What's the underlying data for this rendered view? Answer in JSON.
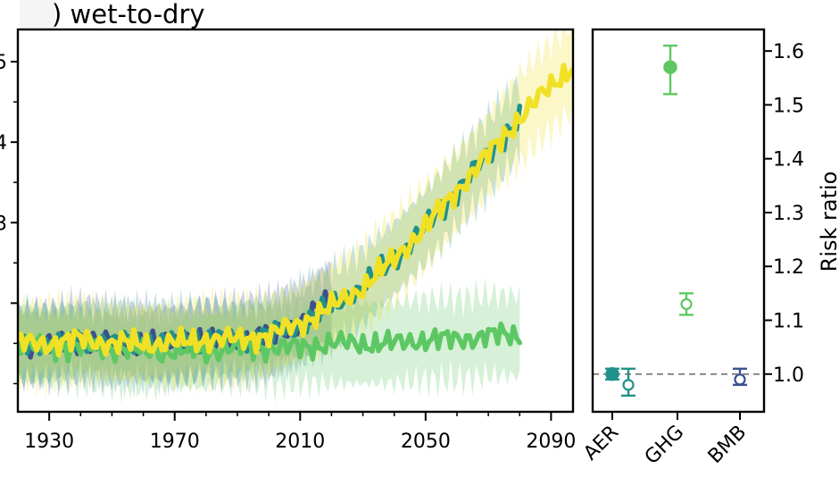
{
  "panel_title": ") wet-to-dry",
  "chart_data": [
    {
      "type": "line",
      "title": ") wet-to-dry",
      "xlabel": "",
      "ylabel": "",
      "xlim": [
        1920,
        2097
      ],
      "ylim": [
        0.63,
        1.58
      ],
      "x_ticks": [
        1930,
        1970,
        2010,
        2050,
        2090
      ],
      "y_ticks_partial_labels": [
        "5",
        "4",
        "3"
      ],
      "grid": false,
      "legend": "none",
      "series": [
        {
          "color": "#3b528b",
          "x": [
            1920,
            1930,
            1940,
            1950,
            1960,
            1970,
            1980,
            1990,
            2000,
            2010,
            2020
          ],
          "y": [
            0.8,
            0.8,
            0.81,
            0.8,
            0.8,
            0.8,
            0.81,
            0.81,
            0.82,
            0.85,
            0.91
          ],
          "band": [
            0.09,
            0.09,
            0.09,
            0.09,
            0.09,
            0.09,
            0.09,
            0.09,
            0.09,
            0.09,
            0.09
          ]
        },
        {
          "color": "#21918c",
          "x": [
            1920,
            1930,
            1940,
            1950,
            1960,
            1970,
            1980,
            1990,
            2000,
            2010,
            2020,
            2030,
            2040,
            2050,
            2060,
            2070,
            2080
          ],
          "y": [
            0.8,
            0.8,
            0.81,
            0.8,
            0.8,
            0.8,
            0.81,
            0.81,
            0.82,
            0.85,
            0.89,
            0.94,
            1.01,
            1.09,
            1.18,
            1.27,
            1.36
          ],
          "band": [
            0.09,
            0.09,
            0.09,
            0.09,
            0.09,
            0.09,
            0.09,
            0.09,
            0.09,
            0.09,
            0.09,
            0.09,
            0.09,
            0.09,
            0.09,
            0.09,
            0.09
          ]
        },
        {
          "color": "#f0e126",
          "x": [
            1920,
            1930,
            1940,
            1950,
            1960,
            1970,
            1980,
            1990,
            2000,
            2010,
            2020,
            2030,
            2040,
            2050,
            2060,
            2070,
            2080,
            2090,
            2097
          ],
          "y": [
            0.8,
            0.8,
            0.81,
            0.8,
            0.8,
            0.8,
            0.81,
            0.81,
            0.82,
            0.85,
            0.89,
            0.94,
            1.01,
            1.09,
            1.18,
            1.27,
            1.36,
            1.44,
            1.49
          ],
          "band": [
            0.09,
            0.09,
            0.09,
            0.09,
            0.09,
            0.09,
            0.09,
            0.09,
            0.09,
            0.09,
            0.1,
            0.1,
            0.1,
            0.1,
            0.1,
            0.1,
            0.11,
            0.11,
            0.11
          ]
        },
        {
          "color": "#5dc863",
          "x": [
            1920,
            1930,
            1940,
            1950,
            1960,
            1970,
            1980,
            1990,
            2000,
            2010,
            2020,
            2030,
            2040,
            2050,
            2060,
            2070,
            2080
          ],
          "y": [
            0.8,
            0.79,
            0.79,
            0.79,
            0.78,
            0.78,
            0.78,
            0.79,
            0.79,
            0.79,
            0.8,
            0.8,
            0.8,
            0.81,
            0.81,
            0.82,
            0.82
          ],
          "band": [
            0.09,
            0.09,
            0.09,
            0.09,
            0.09,
            0.09,
            0.09,
            0.09,
            0.09,
            0.09,
            0.1,
            0.1,
            0.1,
            0.1,
            0.1,
            0.1,
            0.1
          ]
        }
      ]
    },
    {
      "type": "scatter",
      "title": "",
      "xlabel": "",
      "ylabel": "Risk ratio",
      "ylim": [
        0.93,
        1.64
      ],
      "categories": [
        "AER",
        "GHG",
        "BMB"
      ],
      "y_ticks": [
        1.0,
        1.1,
        1.2,
        1.3,
        1.4,
        1.5,
        1.6
      ],
      "y_tick_labels": [
        "1.0",
        "1.1",
        "1.2",
        "1.3",
        "1.4",
        "1.5",
        "1.6"
      ],
      "reference_line": 1.0,
      "legend": "none",
      "points": [
        {
          "category": "AER",
          "marker": "filled",
          "color": "#21918c",
          "y": 1.0,
          "lo": 0.99,
          "hi": 1.01
        },
        {
          "category": "AER",
          "marker": "open",
          "color": "#21918c",
          "y": 0.98,
          "lo": 0.96,
          "hi": 1.01
        },
        {
          "category": "GHG",
          "marker": "filled",
          "color": "#5dc863",
          "y": 1.57,
          "lo": 1.52,
          "hi": 1.61
        },
        {
          "category": "GHG",
          "marker": "open",
          "color": "#5dc863",
          "y": 1.13,
          "lo": 1.11,
          "hi": 1.15
        },
        {
          "category": "BMB",
          "marker": "open",
          "color": "#3b528b",
          "y": 0.99,
          "lo": 0.98,
          "hi": 1.01
        }
      ]
    }
  ]
}
